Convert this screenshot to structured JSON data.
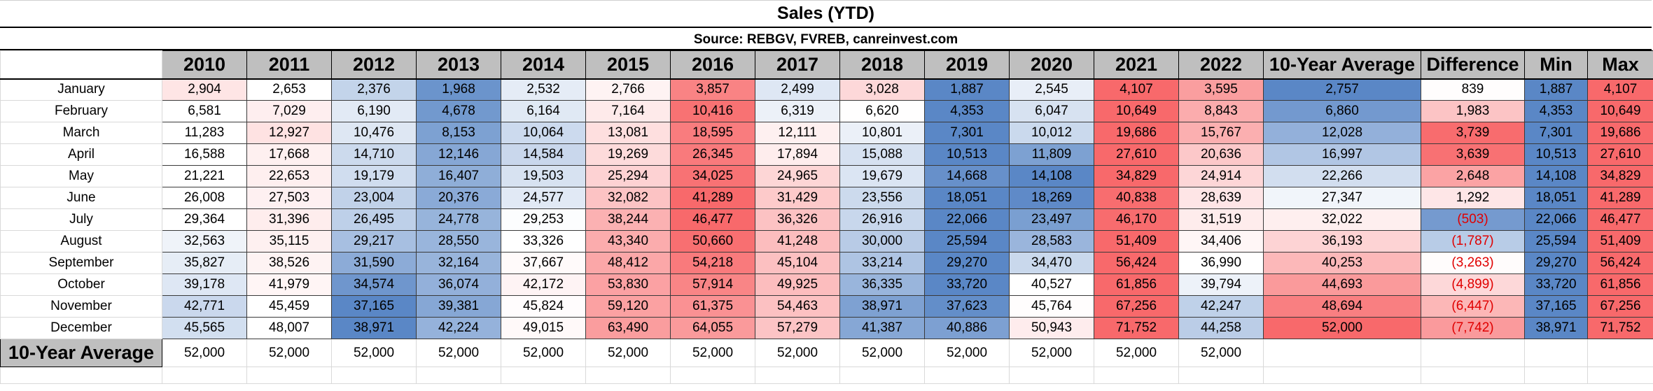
{
  "title": "Sales (YTD)",
  "source": "Source: REBGV, FVREB, canreinvest.com",
  "header": [
    "2010",
    "2011",
    "2012",
    "2013",
    "2014",
    "2015",
    "2016",
    "2017",
    "2018",
    "2019",
    "2020",
    "2021",
    "2022",
    "10-Year Average",
    "Difference",
    "Min",
    "Max"
  ],
  "rows": [
    {
      "month": "January",
      "values": [
        "2,904",
        "2,653",
        "2,376",
        "1,968",
        "2,532",
        "2,766",
        "3,857",
        "2,499",
        "3,028",
        "1,887",
        "2,545",
        "4,107",
        "3,595",
        "2,757",
        "839",
        "1,887",
        "4,107"
      ]
    },
    {
      "month": "February",
      "values": [
        "6,581",
        "7,029",
        "6,190",
        "4,678",
        "6,164",
        "7,164",
        "10,416",
        "6,319",
        "6,620",
        "4,353",
        "6,047",
        "10,649",
        "8,843",
        "6,860",
        "1,983",
        "4,353",
        "10,649"
      ]
    },
    {
      "month": "March",
      "values": [
        "11,283",
        "12,927",
        "10,476",
        "8,153",
        "10,064",
        "13,081",
        "18,595",
        "12,111",
        "10,801",
        "7,301",
        "10,012",
        "19,686",
        "15,767",
        "12,028",
        "3,739",
        "7,301",
        "19,686"
      ]
    },
    {
      "month": "April",
      "values": [
        "16,588",
        "17,668",
        "14,710",
        "12,146",
        "14,584",
        "19,269",
        "26,345",
        "17,894",
        "15,088",
        "10,513",
        "11,809",
        "27,610",
        "20,636",
        "16,997",
        "3,639",
        "10,513",
        "27,610"
      ]
    },
    {
      "month": "May",
      "values": [
        "21,221",
        "22,653",
        "19,179",
        "16,407",
        "19,503",
        "25,294",
        "34,025",
        "24,965",
        "19,679",
        "14,668",
        "14,108",
        "34,829",
        "24,914",
        "22,266",
        "2,648",
        "14,108",
        "34,829"
      ]
    },
    {
      "month": "June",
      "values": [
        "26,008",
        "27,503",
        "23,004",
        "20,376",
        "24,577",
        "32,082",
        "41,289",
        "31,429",
        "23,556",
        "18,051",
        "18,269",
        "40,838",
        "28,639",
        "27,347",
        "1,292",
        "18,051",
        "41,289"
      ]
    },
    {
      "month": "July",
      "values": [
        "29,364",
        "31,396",
        "26,495",
        "24,778",
        "29,253",
        "38,244",
        "46,477",
        "36,326",
        "26,916",
        "22,066",
        "23,497",
        "46,170",
        "31,519",
        "32,022",
        "(503)",
        "22,066",
        "46,477"
      ]
    },
    {
      "month": "August",
      "values": [
        "32,563",
        "35,115",
        "29,217",
        "28,550",
        "33,326",
        "43,340",
        "50,660",
        "41,248",
        "30,000",
        "25,594",
        "28,583",
        "51,409",
        "34,406",
        "36,193",
        "(1,787)",
        "25,594",
        "51,409"
      ]
    },
    {
      "month": "September",
      "values": [
        "35,827",
        "38,526",
        "31,590",
        "32,164",
        "37,667",
        "48,412",
        "54,218",
        "45,104",
        "33,214",
        "29,270",
        "34,470",
        "56,424",
        "36,990",
        "40,253",
        "(3,263)",
        "29,270",
        "56,424"
      ]
    },
    {
      "month": "October",
      "values": [
        "39,178",
        "41,979",
        "34,574",
        "36,074",
        "42,172",
        "53,830",
        "57,914",
        "49,925",
        "36,335",
        "33,720",
        "40,527",
        "61,856",
        "39,794",
        "44,693",
        "(4,899)",
        "33,720",
        "61,856"
      ]
    },
    {
      "month": "November",
      "values": [
        "42,771",
        "45,459",
        "37,165",
        "39,381",
        "45,824",
        "59,120",
        "61,375",
        "54,463",
        "38,971",
        "37,623",
        "45,764",
        "67,256",
        "42,247",
        "48,694",
        "(6,447)",
        "37,165",
        "67,256"
      ]
    },
    {
      "month": "December",
      "values": [
        "45,565",
        "48,007",
        "38,971",
        "42,224",
        "49,015",
        "63,490",
        "64,055",
        "57,279",
        "41,387",
        "40,886",
        "50,943",
        "71,752",
        "44,258",
        "52,000",
        "(7,742)",
        "38,971",
        "71,752"
      ]
    }
  ],
  "avg_row": {
    "label": "10-Year Average",
    "values": [
      "52,000",
      "52,000",
      "52,000",
      "52,000",
      "52,000",
      "52,000",
      "52,000",
      "52,000",
      "52,000",
      "52,000",
      "52,000",
      "52,000",
      "52,000"
    ]
  },
  "colors": {
    "blue": "#5a87c6",
    "white": "#ffffff",
    "red": "#f8696b",
    "header": "#bfbfbf",
    "negative_text": "#e00000"
  }
}
